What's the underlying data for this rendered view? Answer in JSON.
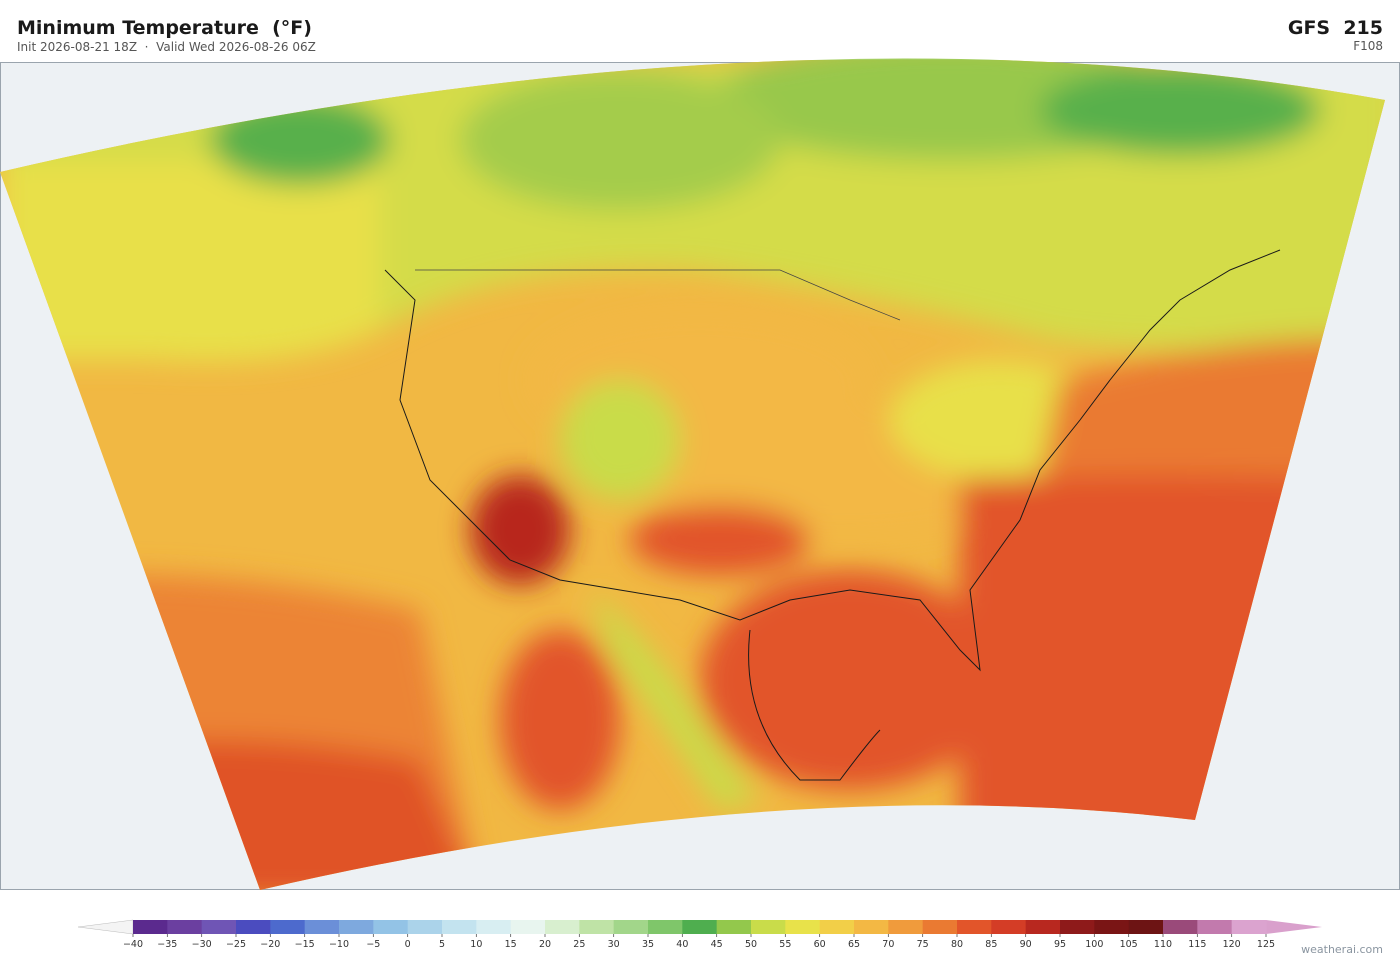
{
  "header": {
    "title": "Minimum Temperature  (°F)",
    "subtitle": "Init 2026-08-21 18Z  ·  Valid Wed 2026-08-26 06Z",
    "model": "GFS  215",
    "forecast_hour": "F108"
  },
  "colorbar": {
    "ticks": [
      {
        "value": -40,
        "label": "−40"
      },
      {
        "value": -35,
        "label": "−35"
      },
      {
        "value": -30,
        "label": "−30"
      },
      {
        "value": -25,
        "label": "−25"
      },
      {
        "value": -20,
        "label": "−20"
      },
      {
        "value": -15,
        "label": "−15"
      },
      {
        "value": -10,
        "label": "−10"
      },
      {
        "value": -5,
        "label": "−5"
      },
      0,
      5,
      10,
      15,
      20,
      25,
      30,
      35,
      40,
      45,
      50,
      55,
      60,
      65,
      70,
      75,
      80,
      85,
      90,
      95,
      100,
      105,
      110,
      115,
      120,
      125
    ],
    "colors": [
      "#5b2a8e",
      "#6b3fa0",
      "#6f55b5",
      "#4b4cbf",
      "#4d6acd",
      "#6b8fd8",
      "#7ea9de",
      "#93c3e6",
      "#abd3ea",
      "#c3e3ef",
      "#d8eef2",
      "#e8f5ef",
      "#d8efcf",
      "#bfe3a6",
      "#a2d68a",
      "#7fc66a",
      "#4fae4f",
      "#93c84c",
      "#c9dc4a",
      "#e8e24a",
      "#f2cf48",
      "#f3b844",
      "#f09b3c",
      "#ea7a32",
      "#e2552a",
      "#d43d26",
      "#b8281f",
      "#8e1a1a",
      "#7a1515",
      "#6d1414",
      "#9a4a7a",
      "#c27aad",
      "#dba3cf"
    ],
    "extend_colors": [
      "#f4f4f4",
      "#d9a0cc"
    ]
  },
  "footer": {
    "credit": "weatherai.com"
  }
}
